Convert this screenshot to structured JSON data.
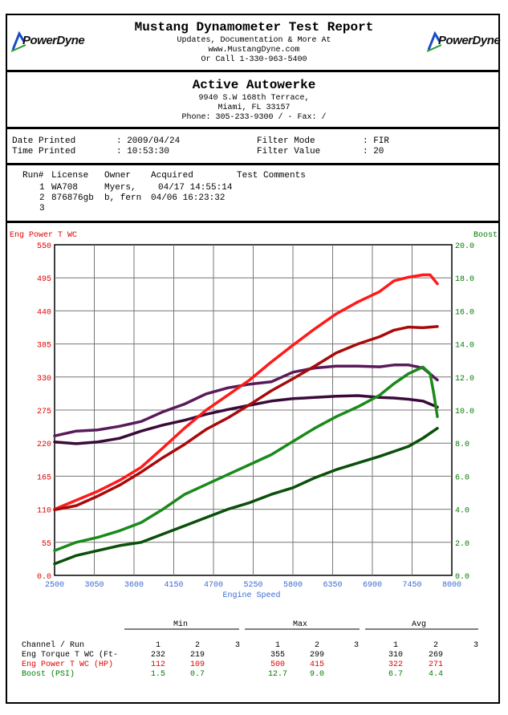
{
  "header": {
    "title": "Mustang Dynamometer Test Report",
    "line1": "Updates, Documentation & More At",
    "line2": "www.MustangDyne.com",
    "line3": "Or Call 1-330-963-5400",
    "logo_left": "PowerDyne",
    "logo_right": "PowerDyne"
  },
  "shop": {
    "name": "Active Autowerke",
    "address1": "9940 S.W 168th Terrace,",
    "address2": "Miami, FL  33157",
    "phone": "Phone: 305-233-9300 /  - Fax:  /"
  },
  "info": {
    "date_label": "Date Printed",
    "date_value": ": 2009/04/24",
    "time_label": "Time Printed",
    "time_value": ": 10:53:30",
    "filter_mode_label": "Filter Mode",
    "filter_mode_value": ": FIR",
    "filter_value_label": "Filter Value",
    "filter_value_value": ": 20"
  },
  "runs": {
    "headers": [
      "Run#",
      "License",
      "Owner",
      "Acquired",
      "Test Comments"
    ],
    "rows": [
      {
        "run": "1",
        "license": "WA708",
        "owner": "Myers,",
        "acquired": "04/17 14:55:14"
      },
      {
        "run": "2",
        "license": "876876gb",
        "owner": "b, fern",
        "acquired": "04/06 16:23:32"
      },
      {
        "run": "3",
        "license": "",
        "owner": "",
        "acquired": ""
      }
    ]
  },
  "colors": {
    "torque1": "#5a1a5a",
    "torque2": "#3a0a3a",
    "power1": "#ff1a1a",
    "power2": "#a80a0a",
    "boost1": "#1a8a1a",
    "boost2": "#0a500a",
    "left_axis": "#e00000",
    "right_axis": "#007a00",
    "x_axis": "#3a6ad0"
  },
  "chart_data": {
    "type": "line",
    "left_label": "Eng Power T WC",
    "right_label": "Boost",
    "xlabel": "Engine Speed",
    "xlim": [
      2500,
      8000
    ],
    "ylim_left": [
      0,
      550
    ],
    "ylim_right": [
      0,
      20
    ],
    "x_ticks": [
      "2500",
      "3050",
      "3600",
      "4150",
      "4700",
      "5250",
      "5800",
      "6350",
      "6900",
      "7450",
      "8000"
    ],
    "y_left_ticks": [
      "0.0",
      "55",
      "110",
      "165",
      "220",
      "275",
      "330",
      "385",
      "440",
      "495",
      "550"
    ],
    "y_right_ticks": [
      "0.0",
      "2.0",
      "4.0",
      "6.0",
      "8.0",
      "10.0",
      "12.0",
      "14.0",
      "16.0",
      "18.0",
      "20.0"
    ],
    "series": [
      {
        "name": "Torque Run 1",
        "axis": "left",
        "color": "torque1",
        "x": [
          2500,
          2800,
          3100,
          3400,
          3700,
          4000,
          4300,
          4600,
          4900,
          5200,
          5500,
          5800,
          6100,
          6400,
          6700,
          7000,
          7200,
          7400,
          7600,
          7800
        ],
        "y": [
          232,
          240,
          242,
          248,
          256,
          272,
          285,
          302,
          312,
          318,
          322,
          338,
          345,
          348,
          348,
          347,
          350,
          350,
          345,
          325
        ]
      },
      {
        "name": "Torque Run 2",
        "axis": "left",
        "color": "torque2",
        "x": [
          2500,
          2800,
          3100,
          3400,
          3700,
          4000,
          4300,
          4600,
          4900,
          5200,
          5500,
          5800,
          6100,
          6400,
          6700,
          7000,
          7200,
          7400,
          7600,
          7800
        ],
        "y": [
          222,
          219,
          222,
          228,
          240,
          250,
          258,
          268,
          276,
          283,
          290,
          294,
          296,
          298,
          299,
          296,
          295,
          293,
          290,
          280
        ]
      },
      {
        "name": "Power Run 1",
        "axis": "left",
        "color": "power1",
        "x": [
          2500,
          2800,
          3100,
          3400,
          3700,
          4000,
          4300,
          4600,
          4900,
          5200,
          5500,
          5800,
          6100,
          6400,
          6700,
          7000,
          7200,
          7400,
          7600,
          7700,
          7800
        ],
        "y": [
          110,
          125,
          140,
          158,
          180,
          212,
          245,
          275,
          300,
          325,
          355,
          383,
          410,
          435,
          455,
          472,
          490,
          496,
          500,
          500,
          485
        ]
      },
      {
        "name": "Power Run 2",
        "axis": "left",
        "color": "power2",
        "x": [
          2500,
          2800,
          3100,
          3400,
          3700,
          4000,
          4300,
          4600,
          4900,
          5200,
          5500,
          5800,
          6100,
          6400,
          6700,
          7000,
          7200,
          7400,
          7600,
          7800
        ],
        "y": [
          109,
          116,
          132,
          150,
          172,
          196,
          218,
          243,
          262,
          284,
          307,
          327,
          348,
          370,
          385,
          397,
          408,
          413,
          412,
          414
        ]
      },
      {
        "name": "Boost Run 1",
        "axis": "right",
        "color": "boost1",
        "x": [
          2500,
          2800,
          3100,
          3400,
          3700,
          4000,
          4300,
          4600,
          4900,
          5200,
          5500,
          5800,
          6100,
          6400,
          6700,
          7000,
          7200,
          7400,
          7600,
          7700,
          7750,
          7800
        ],
        "y": [
          1.5,
          2.0,
          2.3,
          2.7,
          3.2,
          4.0,
          4.9,
          5.5,
          6.1,
          6.7,
          7.3,
          8.1,
          8.9,
          9.6,
          10.2,
          10.9,
          11.6,
          12.2,
          12.6,
          12.2,
          11.0,
          9.6
        ]
      },
      {
        "name": "Boost Run 2",
        "axis": "right",
        "color": "boost2",
        "x": [
          2500,
          2800,
          3100,
          3400,
          3700,
          4000,
          4300,
          4600,
          4900,
          5200,
          5500,
          5800,
          6100,
          6400,
          6700,
          7000,
          7200,
          7400,
          7600,
          7800
        ],
        "y": [
          0.7,
          1.2,
          1.5,
          1.8,
          2.0,
          2.5,
          3.0,
          3.5,
          4.0,
          4.4,
          4.9,
          5.3,
          5.9,
          6.4,
          6.8,
          7.2,
          7.5,
          7.8,
          8.3,
          8.9
        ]
      }
    ]
  },
  "summary": {
    "groups": [
      "Min",
      "Max",
      "Avg"
    ],
    "channel_header": "Channel / Run",
    "run_cols": [
      "1",
      "2",
      "3"
    ],
    "rows": [
      {
        "label": "Eng Torque T WC (Ft-",
        "min1": "232",
        "min2": "219",
        "max1": "355",
        "max2": "299",
        "avg1": "310",
        "avg2": "269",
        "color": "#000000"
      },
      {
        "label": "Eng Power T WC (HP)",
        "min1": "112",
        "min2": "109",
        "max1": "500",
        "max2": "415",
        "avg1": "322",
        "avg2": "271",
        "color": "#e00000"
      },
      {
        "label": "Boost (PSI)",
        "min1": "1.5",
        "min2": "0.7",
        "max1": "12.7",
        "max2": "9.0",
        "avg1": "6.7",
        "avg2": "4.4",
        "color": "#007a00"
      }
    ]
  }
}
